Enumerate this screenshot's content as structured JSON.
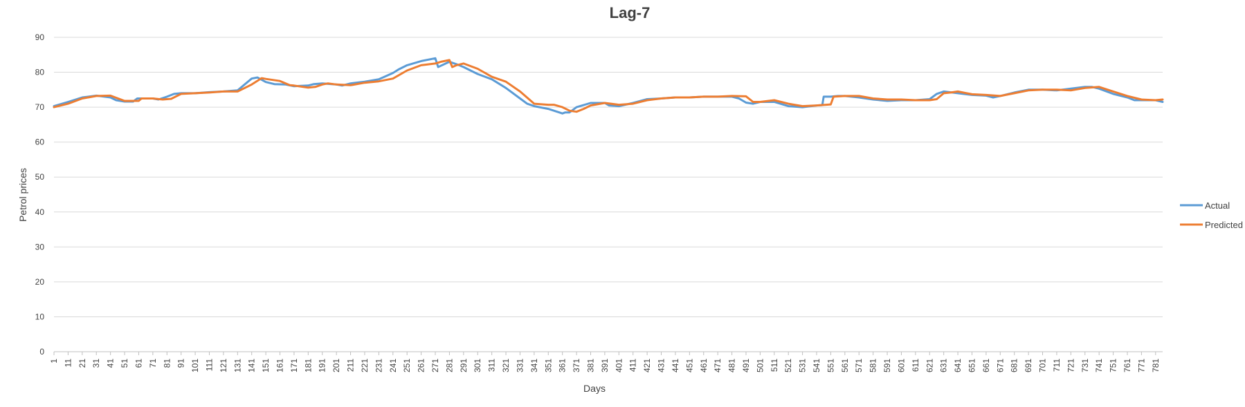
{
  "chart_data": {
    "type": "line",
    "title": "Lag-7",
    "xlabel": "Days",
    "ylabel": "Petrol prices",
    "ylim": [
      0,
      90
    ],
    "yticks": [
      0,
      10,
      20,
      30,
      40,
      50,
      60,
      70,
      80,
      90
    ],
    "xlim": [
      1,
      786
    ],
    "xticks": [
      1,
      11,
      21,
      31,
      41,
      51,
      61,
      71,
      81,
      91,
      101,
      111,
      121,
      131,
      141,
      151,
      161,
      171,
      181,
      191,
      201,
      211,
      221,
      231,
      241,
      251,
      261,
      271,
      281,
      291,
      301,
      311,
      321,
      331,
      341,
      351,
      361,
      371,
      381,
      391,
      401,
      411,
      421,
      431,
      441,
      451,
      461,
      471,
      481,
      491,
      501,
      511,
      521,
      531,
      541,
      551,
      561,
      571,
      581,
      591,
      601,
      611,
      621,
      631,
      641,
      651,
      661,
      671,
      681,
      691,
      701,
      711,
      721,
      731,
      741,
      751,
      761,
      771,
      781
    ],
    "grid": true,
    "legend_position": "right",
    "series": [
      {
        "name": "Actual",
        "color": "#5b9bd5",
        "points": [
          [
            1,
            70.3
          ],
          [
            11,
            71.5
          ],
          [
            21,
            72.8
          ],
          [
            31,
            73.3
          ],
          [
            41,
            72.8
          ],
          [
            45,
            72.0
          ],
          [
            51,
            71.6
          ],
          [
            57,
            71.6
          ],
          [
            60,
            72.5
          ],
          [
            71,
            72.5
          ],
          [
            75,
            72.2
          ],
          [
            81,
            73.0
          ],
          [
            86,
            73.8
          ],
          [
            91,
            74.0
          ],
          [
            101,
            74.0
          ],
          [
            111,
            74.3
          ],
          [
            121,
            74.5
          ],
          [
            131,
            74.8
          ],
          [
            141,
            78.2
          ],
          [
            145,
            78.5
          ],
          [
            151,
            77.2
          ],
          [
            157,
            76.6
          ],
          [
            165,
            76.5
          ],
          [
            171,
            76.0
          ],
          [
            181,
            76.2
          ],
          [
            185,
            76.6
          ],
          [
            191,
            76.8
          ],
          [
            201,
            76.5
          ],
          [
            205,
            76.2
          ],
          [
            211,
            76.8
          ],
          [
            221,
            77.3
          ],
          [
            231,
            78.0
          ],
          [
            241,
            79.8
          ],
          [
            245,
            80.8
          ],
          [
            251,
            82.0
          ],
          [
            261,
            83.2
          ],
          [
            271,
            84.0
          ],
          [
            273,
            81.5
          ],
          [
            281,
            83.0
          ],
          [
            286,
            82.3
          ],
          [
            291,
            81.5
          ],
          [
            301,
            79.5
          ],
          [
            311,
            78.0
          ],
          [
            321,
            75.5
          ],
          [
            331,
            72.5
          ],
          [
            336,
            71.0
          ],
          [
            341,
            70.3
          ],
          [
            351,
            69.5
          ],
          [
            361,
            68.2
          ],
          [
            363,
            68.5
          ],
          [
            366,
            68.5
          ],
          [
            371,
            70.0
          ],
          [
            381,
            71.2
          ],
          [
            391,
            71.2
          ],
          [
            394,
            70.5
          ],
          [
            401,
            70.3
          ],
          [
            411,
            71.2
          ],
          [
            421,
            72.3
          ],
          [
            431,
            72.5
          ],
          [
            441,
            72.8
          ],
          [
            451,
            72.8
          ],
          [
            461,
            73.0
          ],
          [
            471,
            73.0
          ],
          [
            481,
            73.0
          ],
          [
            486,
            72.5
          ],
          [
            491,
            71.3
          ],
          [
            496,
            71.0
          ],
          [
            501,
            71.5
          ],
          [
            511,
            71.5
          ],
          [
            521,
            70.3
          ],
          [
            531,
            70.0
          ],
          [
            541,
            70.5
          ],
          [
            545,
            70.6
          ],
          [
            546,
            73.0
          ],
          [
            551,
            73.0
          ],
          [
            556,
            73.2
          ],
          [
            561,
            73.2
          ],
          [
            571,
            72.8
          ],
          [
            581,
            72.2
          ],
          [
            591,
            71.8
          ],
          [
            601,
            72.0
          ],
          [
            611,
            72.0
          ],
          [
            621,
            72.3
          ],
          [
            626,
            73.8
          ],
          [
            631,
            74.5
          ],
          [
            641,
            74.0
          ],
          [
            651,
            73.5
          ],
          [
            661,
            73.3
          ],
          [
            666,
            72.8
          ],
          [
            671,
            73.2
          ],
          [
            681,
            74.2
          ],
          [
            691,
            75.0
          ],
          [
            701,
            75.0
          ],
          [
            711,
            74.8
          ],
          [
            721,
            75.3
          ],
          [
            731,
            75.8
          ],
          [
            736,
            75.8
          ],
          [
            741,
            75.3
          ],
          [
            751,
            73.8
          ],
          [
            761,
            72.8
          ],
          [
            766,
            72.0
          ],
          [
            771,
            72.0
          ],
          [
            781,
            72.0
          ],
          [
            786,
            71.5
          ]
        ]
      },
      {
        "name": "Predicted",
        "color": "#ed7d31",
        "points": [
          [
            1,
            70.0
          ],
          [
            11,
            71.0
          ],
          [
            21,
            72.5
          ],
          [
            31,
            73.2
          ],
          [
            41,
            73.3
          ],
          [
            51,
            71.8
          ],
          [
            61,
            71.8
          ],
          [
            63,
            72.5
          ],
          [
            71,
            72.5
          ],
          [
            78,
            72.2
          ],
          [
            84,
            72.4
          ],
          [
            91,
            73.8
          ],
          [
            101,
            74.0
          ],
          [
            111,
            74.2
          ],
          [
            121,
            74.5
          ],
          [
            131,
            74.5
          ],
          [
            141,
            76.5
          ],
          [
            148,
            78.3
          ],
          [
            151,
            78.1
          ],
          [
            161,
            77.5
          ],
          [
            168,
            76.3
          ],
          [
            171,
            76.2
          ],
          [
            181,
            75.6
          ],
          [
            186,
            75.8
          ],
          [
            191,
            76.5
          ],
          [
            195,
            76.8
          ],
          [
            201,
            76.5
          ],
          [
            211,
            76.3
          ],
          [
            221,
            77.0
          ],
          [
            231,
            77.4
          ],
          [
            241,
            78.2
          ],
          [
            251,
            80.5
          ],
          [
            261,
            82.0
          ],
          [
            271,
            82.5
          ],
          [
            275,
            83.0
          ],
          [
            281,
            83.5
          ],
          [
            283,
            81.5
          ],
          [
            286,
            82.0
          ],
          [
            291,
            82.5
          ],
          [
            301,
            81.0
          ],
          [
            311,
            78.7
          ],
          [
            321,
            77.3
          ],
          [
            331,
            74.5
          ],
          [
            341,
            71.0
          ],
          [
            351,
            70.7
          ],
          [
            355,
            70.7
          ],
          [
            361,
            70.0
          ],
          [
            366,
            69.0
          ],
          [
            371,
            68.7
          ],
          [
            376,
            69.5
          ],
          [
            381,
            70.5
          ],
          [
            391,
            71.2
          ],
          [
            401,
            70.7
          ],
          [
            411,
            71.0
          ],
          [
            421,
            72.0
          ],
          [
            431,
            72.5
          ],
          [
            441,
            72.8
          ],
          [
            451,
            72.8
          ],
          [
            461,
            73.0
          ],
          [
            471,
            73.0
          ],
          [
            481,
            73.2
          ],
          [
            491,
            73.1
          ],
          [
            496,
            71.5
          ],
          [
            501,
            71.5
          ],
          [
            511,
            72.0
          ],
          [
            521,
            71.0
          ],
          [
            531,
            70.3
          ],
          [
            541,
            70.5
          ],
          [
            551,
            70.8
          ],
          [
            553,
            73.0
          ],
          [
            561,
            73.2
          ],
          [
            571,
            73.2
          ],
          [
            581,
            72.5
          ],
          [
            591,
            72.2
          ],
          [
            601,
            72.2
          ],
          [
            611,
            72.0
          ],
          [
            621,
            72.0
          ],
          [
            626,
            72.3
          ],
          [
            631,
            74.0
          ],
          [
            636,
            74.2
          ],
          [
            641,
            74.5
          ],
          [
            651,
            73.7
          ],
          [
            661,
            73.5
          ],
          [
            671,
            73.2
          ],
          [
            681,
            74.0
          ],
          [
            691,
            74.8
          ],
          [
            701,
            75.0
          ],
          [
            711,
            75.0
          ],
          [
            721,
            74.8
          ],
          [
            731,
            75.5
          ],
          [
            741,
            75.8
          ],
          [
            751,
            74.5
          ],
          [
            761,
            73.2
          ],
          [
            771,
            72.2
          ],
          [
            781,
            72.0
          ],
          [
            786,
            72.2
          ]
        ]
      }
    ]
  }
}
